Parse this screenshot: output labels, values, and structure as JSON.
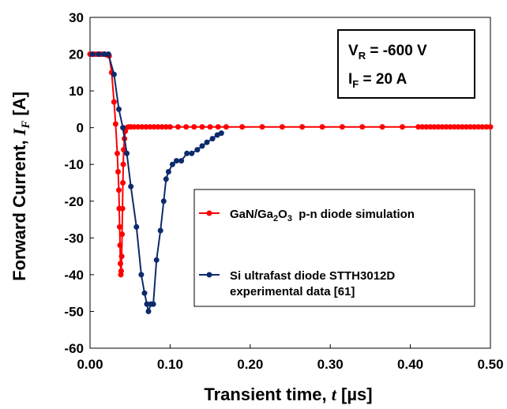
{
  "chart_data": {
    "type": "line",
    "xlabel_text": "Transient time, ",
    "xlabel_var": "t",
    "xlabel_unit": " [µs]",
    "ylabel_text": "Forward Current, ",
    "ylabel_var": "I",
    "ylabel_sub": "F",
    "ylabel_unit": " [A]",
    "xlim": [
      0,
      0.5
    ],
    "ylim": [
      -60,
      30
    ],
    "xticks": [
      "0.00",
      "0.10",
      "0.20",
      "0.30",
      "0.40",
      "0.50"
    ],
    "yticks": [
      "30",
      "20",
      "10",
      "0",
      "-10",
      "-20",
      "-30",
      "-40",
      "-50",
      "-60"
    ],
    "grid": false,
    "legend_position": "center-right",
    "conditions": {
      "vr_main": "V",
      "vr_sub": "R",
      "vr_value": " = -600 V",
      "if_main": "I",
      "if_sub": "F",
      "if_value": " = 20 A"
    },
    "series": [
      {
        "name_parts": [
          "GaN/Ga",
          "2",
          "O",
          "3",
          "  p-n diode simulation"
        ],
        "color": "#ff0000",
        "x": [
          0.0,
          0.003,
          0.006,
          0.009,
          0.012,
          0.015,
          0.018,
          0.021,
          0.024,
          0.027,
          0.03,
          0.032,
          0.034,
          0.035,
          0.036,
          0.0365,
          0.037,
          0.0375,
          0.038,
          0.0385,
          0.039,
          0.0395,
          0.04,
          0.0405,
          0.041,
          0.0415,
          0.042,
          0.043,
          0.044,
          0.046,
          0.048,
          0.051,
          0.055,
          0.06,
          0.065,
          0.07,
          0.075,
          0.08,
          0.085,
          0.09,
          0.095,
          0.1,
          0.11,
          0.12,
          0.13,
          0.14,
          0.15,
          0.16,
          0.17,
          0.19,
          0.215,
          0.24,
          0.265,
          0.29,
          0.315,
          0.34,
          0.365,
          0.39,
          0.41,
          0.415,
          0.42,
          0.425,
          0.43,
          0.435,
          0.44,
          0.445,
          0.45,
          0.455,
          0.46,
          0.465,
          0.47,
          0.475,
          0.48,
          0.485,
          0.49,
          0.495,
          0.5
        ],
        "y": [
          20,
          20,
          20,
          20,
          20,
          20,
          20,
          19.8,
          19.5,
          15,
          7,
          1,
          -7,
          -12,
          -17,
          -22,
          -27,
          -32,
          -37,
          -40,
          -39,
          -35,
          -29,
          -22,
          -15,
          -10,
          -6,
          -3,
          -1,
          0,
          0.2,
          0.2,
          0.2,
          0.2,
          0.2,
          0.2,
          0.2,
          0.2,
          0.2,
          0.2,
          0.2,
          0.2,
          0.2,
          0.2,
          0.2,
          0.2,
          0.2,
          0.2,
          0.2,
          0.2,
          0.2,
          0.2,
          0.2,
          0.2,
          0.2,
          0.2,
          0.2,
          0.2,
          0.2,
          0.2,
          0.2,
          0.2,
          0.2,
          0.2,
          0.2,
          0.2,
          0.2,
          0.2,
          0.2,
          0.2,
          0.2,
          0.2,
          0.2,
          0.2,
          0.2,
          0.2,
          0.2
        ]
      },
      {
        "name_line1": "Si ultrafast diode STTH3012D",
        "name_line2": "experimental data [61]",
        "color": "#0d2a6b",
        "x": [
          0.003,
          0.011,
          0.018,
          0.023,
          0.03,
          0.036,
          0.041,
          0.046,
          0.051,
          0.058,
          0.064,
          0.068,
          0.071,
          0.073,
          0.076,
          0.079,
          0.083,
          0.088,
          0.092,
          0.095,
          0.098,
          0.103,
          0.108,
          0.114,
          0.121,
          0.127,
          0.134,
          0.14,
          0.146,
          0.153,
          0.159,
          0.164
        ],
        "y": [
          20,
          20,
          20,
          20,
          14.5,
          5,
          0,
          -7,
          -16,
          -27,
          -40,
          -45,
          -48,
          -50,
          -48,
          -48,
          -36,
          -28,
          -20,
          -14,
          -12,
          -10,
          -9,
          -9,
          -7,
          -7,
          -6,
          -5,
          -4,
          -3,
          -2,
          -1.5
        ]
      }
    ]
  }
}
